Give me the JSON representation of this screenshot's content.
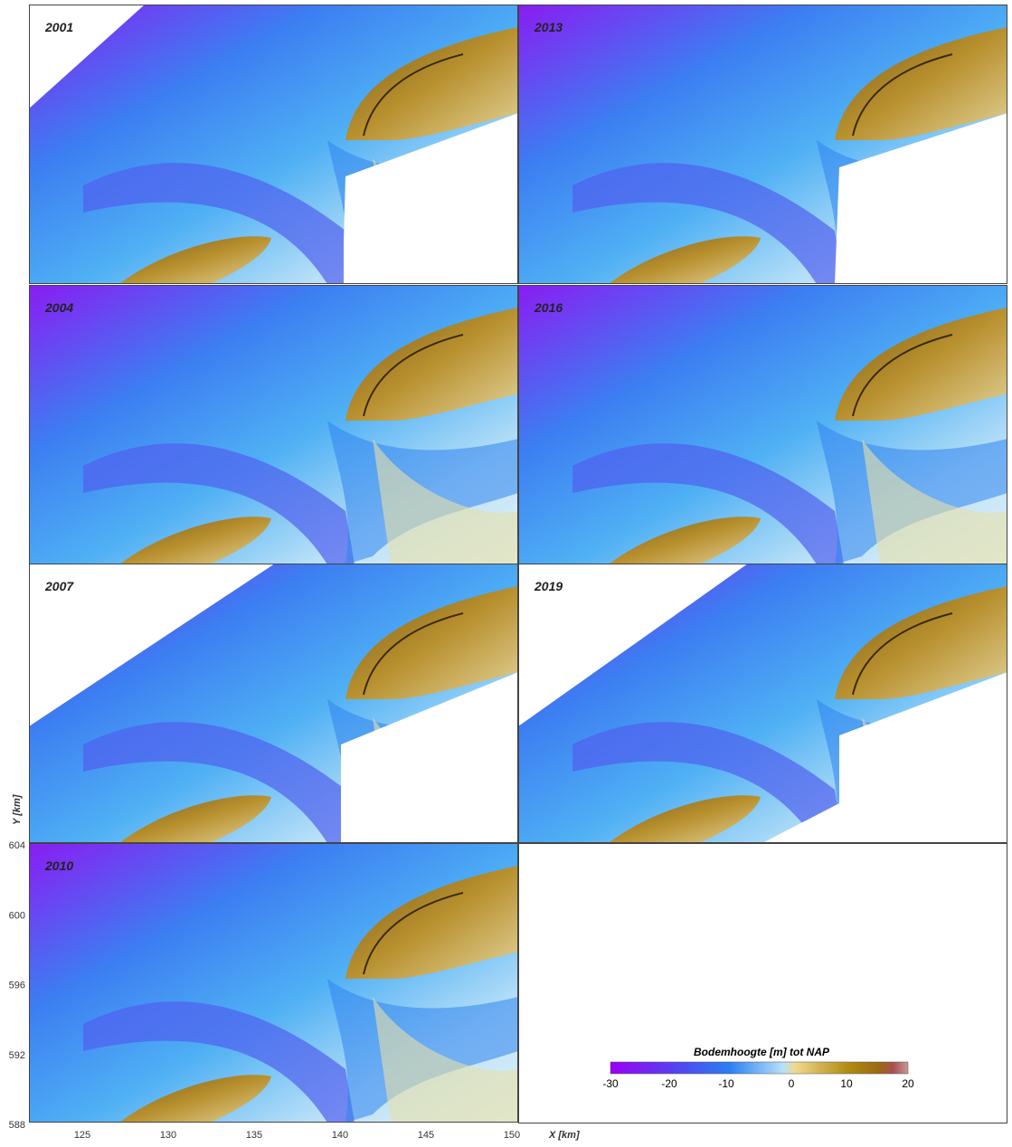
{
  "panels": [
    {
      "year": "2001"
    },
    {
      "year": "2013"
    },
    {
      "year": "2004"
    },
    {
      "year": "2016"
    },
    {
      "year": "2007"
    },
    {
      "year": "2019"
    },
    {
      "year": "2010"
    }
  ],
  "y_axis": {
    "label": "Y [km]",
    "ticks": [
      604,
      600,
      596,
      592,
      588
    ]
  },
  "x_axis": {
    "label": "X [km]",
    "ticks": [
      125,
      130,
      135,
      140,
      145,
      150
    ]
  },
  "colorbar": {
    "title": "Bodemhoogte  [m] tot NAP",
    "ticks": [
      -30,
      -20,
      -10,
      0,
      10,
      20
    ]
  }
}
